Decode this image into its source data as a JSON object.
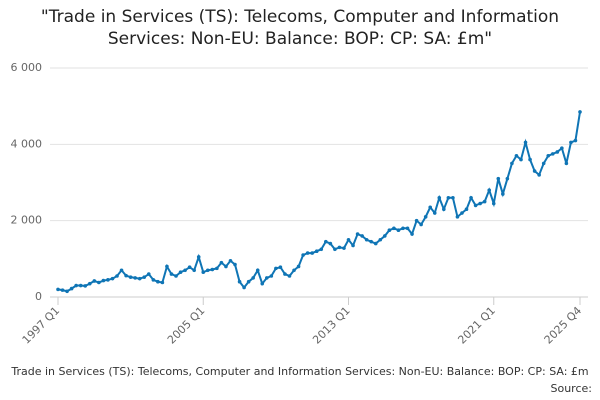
{
  "chart_data": {
    "type": "line",
    "title": "\"Trade in Services (TS): Telecoms, Computer and Information Services: Non-EU: Balance: BOP: CP: SA: £m\"",
    "source": "Source:",
    "categories": [
      "1997 Q1",
      null,
      null,
      null,
      null,
      null,
      null,
      null,
      null,
      null,
      null,
      null,
      null,
      null,
      null,
      null,
      null,
      null,
      null,
      null,
      null,
      null,
      null,
      null,
      null,
      null,
      null,
      null,
      null,
      null,
      null,
      null,
      "2005 Q1",
      null,
      null,
      null,
      null,
      null,
      null,
      null,
      null,
      null,
      null,
      null,
      null,
      null,
      null,
      null,
      null,
      null,
      null,
      null,
      null,
      null,
      null,
      null,
      null,
      null,
      null,
      null,
      null,
      null,
      null,
      null,
      "2013 Q1",
      null,
      null,
      null,
      null,
      null,
      null,
      null,
      null,
      null,
      null,
      null,
      null,
      null,
      null,
      null,
      null,
      null,
      null,
      null,
      null,
      null,
      null,
      null,
      null,
      null,
      null,
      null,
      null,
      null,
      null,
      null,
      "2021 Q1",
      null,
      null,
      null,
      null,
      null,
      null,
      null,
      null,
      null,
      null,
      null,
      null,
      null,
      null,
      null,
      null,
      null,
      null,
      "2025 Q4"
    ],
    "series": [
      {
        "name": "Trade in Services (TS): Telecoms, Computer and Information Services: Non-EU: Balance: BOP: CP: SA: £m",
        "color": "#0f75b5",
        "values": [
          200,
          180,
          150,
          220,
          300,
          300,
          290,
          350,
          420,
          380,
          430,
          450,
          480,
          550,
          700,
          560,
          520,
          500,
          480,
          520,
          600,
          450,
          400,
          380,
          800,
          600,
          550,
          650,
          700,
          780,
          700,
          1050,
          650,
          700,
          720,
          750,
          900,
          800,
          950,
          850,
          400,
          250,
          400,
          500,
          700,
          350,
          500,
          550,
          750,
          780,
          600,
          550,
          700,
          800,
          1100,
          1150,
          1150,
          1200,
          1250,
          1450,
          1400,
          1250,
          1300,
          1280,
          1500,
          1350,
          1650,
          1600,
          1500,
          1450,
          1400,
          1500,
          1600,
          1750,
          1800,
          1750,
          1800,
          1800,
          1650,
          2000,
          1900,
          2100,
          2350,
          2200,
          2600,
          2300,
          2600,
          2600,
          2100,
          2200,
          2300,
          2600,
          2400,
          2450,
          2500,
          2800,
          2450,
          3100,
          2700,
          3100,
          3500,
          3700,
          3600,
          4050,
          3600,
          3300,
          3200,
          3500,
          3700,
          3750,
          3800,
          3900,
          3500,
          4050,
          4100,
          4850
        ]
      }
    ],
    "ylim": [
      0,
      6000
    ],
    "yticks": [
      {
        "value": 0,
        "label": "0"
      },
      {
        "value": 2000,
        "label": "2 000"
      },
      {
        "value": 4000,
        "label": "4 000"
      },
      {
        "value": 6000,
        "label": "6 000"
      }
    ],
    "grid": true
  }
}
